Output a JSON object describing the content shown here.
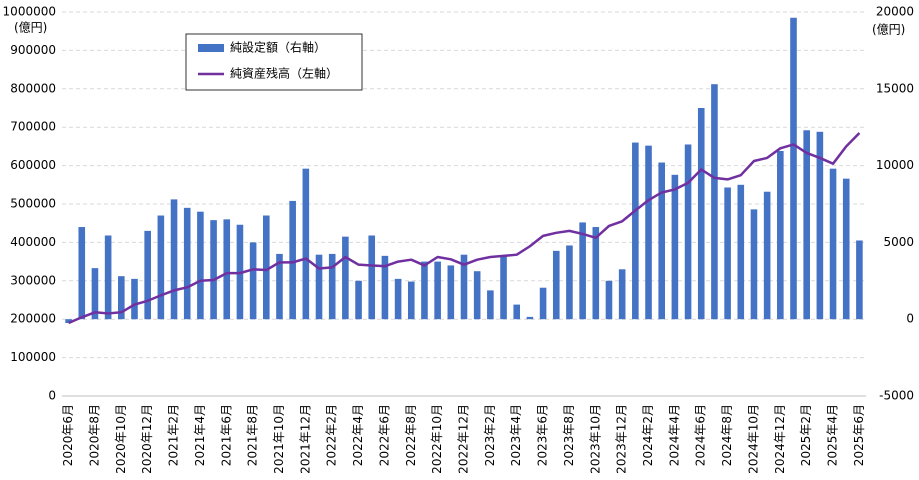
{
  "chart_data": {
    "type": "bar_line",
    "y_unit": "(億円)",
    "y2_unit": "(億円)",
    "categories": [
      "2020年6月",
      null,
      "2020年8月",
      null,
      "2020年10月",
      null,
      "2020年12月",
      null,
      "2021年2月",
      null,
      "2021年4月",
      null,
      "2021年6月",
      null,
      "2021年8月",
      null,
      "2021年10月",
      null,
      "2021年12月",
      null,
      "2022年2月",
      null,
      "2022年4月",
      null,
      "2022年6月",
      null,
      "2022年8月",
      null,
      "2022年10月",
      null,
      "2022年12月",
      null,
      "2023年2月",
      null,
      "2023年4月",
      null,
      "2023年6月",
      null,
      "2023年8月",
      null,
      "2023年10月",
      null,
      "2023年12月",
      null,
      "2024年2月",
      null,
      "2024年4月",
      null,
      "2024年6月",
      null,
      "2024年8月",
      null,
      "2024年10月",
      null,
      "2024年12月",
      null,
      "2025年2月",
      null,
      "2025年4月",
      null,
      "2025年6月"
    ],
    "series": [
      {
        "name": "純設定額（右軸）",
        "type": "bar",
        "axis": "y2",
        "color": "#4472c4",
        "values": [
          -250,
          6000,
          3325,
          5450,
          2800,
          2625,
          5750,
          6750,
          7800,
          7250,
          7000,
          6450,
          6500,
          6150,
          5000,
          6750,
          4250,
          7700,
          9800,
          4200,
          4250,
          5375,
          2500,
          5450,
          4125,
          2625,
          2450,
          3750,
          3750,
          3500,
          4200,
          3125,
          1875,
          4150,
          950,
          150,
          2050,
          4450,
          4800,
          6300,
          6000,
          2500,
          3250,
          11500,
          11300,
          10200,
          9400,
          11375,
          13750,
          15300,
          8575,
          8750,
          7150,
          8300,
          10950,
          19625,
          12300,
          12200,
          9800,
          9150,
          5125
        ]
      },
      {
        "name": "純資産残高（左軸）",
        "type": "line",
        "color": "#7030a0",
        "values": [
          190000,
          205000,
          218000,
          215000,
          218000,
          238000,
          248000,
          262000,
          275000,
          283000,
          300000,
          302000,
          320000,
          320000,
          330000,
          328000,
          348000,
          348000,
          358000,
          332000,
          335000,
          362000,
          342000,
          340000,
          338000,
          350000,
          355000,
          340000,
          362000,
          356000,
          342000,
          355000,
          362000,
          365000,
          368000,
          390000,
          417000,
          425000,
          430000,
          422000,
          412000,
          443000,
          455000,
          483000,
          510000,
          530000,
          538000,
          555000,
          590000,
          568000,
          564000,
          575000,
          612000,
          620000,
          645000,
          655000,
          633000,
          620000,
          605000,
          650000,
          685000
        ]
      }
    ],
    "ylim": [
      0,
      1000000
    ],
    "yticks": [
      0,
      100000,
      200000,
      300000,
      400000,
      500000,
      600000,
      700000,
      800000,
      900000,
      1000000
    ],
    "y2lim": [
      -5000,
      20000
    ],
    "y2ticks": [
      -5000,
      0,
      5000,
      10000,
      15000,
      20000
    ],
    "grid": true,
    "legend": "upper left"
  }
}
